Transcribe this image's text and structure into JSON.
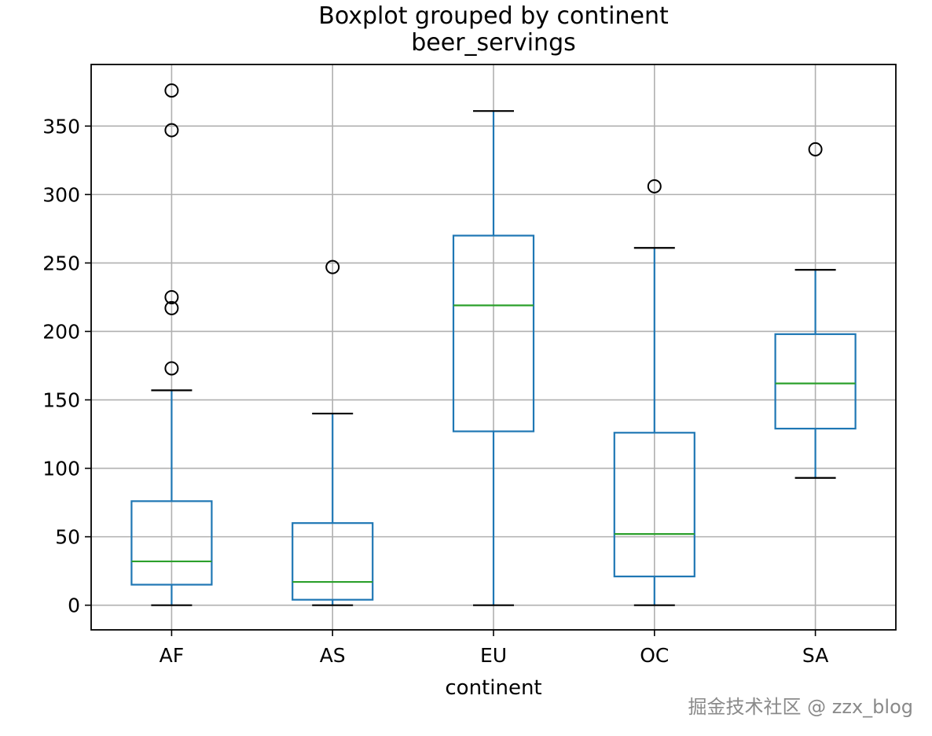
{
  "chart_data": {
    "type": "box",
    "title": "Boxplot grouped by continent",
    "subtitle": "beer_servings",
    "xlabel": "continent",
    "ylabel": "",
    "ylim": [
      -18,
      395
    ],
    "yticks": [
      0,
      50,
      100,
      150,
      200,
      250,
      300,
      350
    ],
    "grid": true,
    "categories": [
      "AF",
      "AS",
      "EU",
      "OC",
      "SA"
    ],
    "boxes": [
      {
        "category": "AF",
        "whisker_low": 0,
        "q1": 15,
        "median": 32,
        "q3": 76,
        "whisker_high": 157,
        "outliers": [
          376,
          347,
          225,
          217,
          173
        ]
      },
      {
        "category": "AS",
        "whisker_low": 0,
        "q1": 4,
        "median": 17,
        "q3": 60,
        "whisker_high": 140,
        "outliers": [
          247
        ]
      },
      {
        "category": "EU",
        "whisker_low": 0,
        "q1": 127,
        "median": 219,
        "q3": 270,
        "whisker_high": 361,
        "outliers": []
      },
      {
        "category": "OC",
        "whisker_low": 0,
        "q1": 21,
        "median": 52,
        "q3": 126,
        "whisker_high": 261,
        "outliers": [
          306
        ]
      },
      {
        "category": "SA",
        "whisker_low": 93,
        "q1": 129,
        "median": 162,
        "q3": 198,
        "whisker_high": 245,
        "outliers": [
          333
        ]
      }
    ],
    "colors": {
      "box": "#1f77b4",
      "median": "#2ca02c",
      "cap": "#000000",
      "grid": "#b0b0b0"
    }
  },
  "watermark": "掘金技术社区 @ zzx_blog"
}
